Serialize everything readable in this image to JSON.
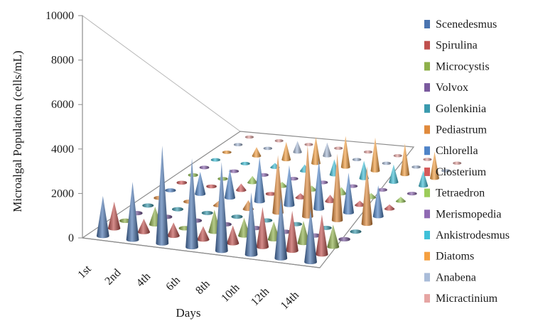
{
  "chart_data": {
    "type": "bar",
    "style": "3d-cone",
    "title": "",
    "xlabel": "Days",
    "ylabel": "Microalgal Population (cells/mL)",
    "ylim": [
      0,
      10000
    ],
    "yticks": [
      "0",
      "2000",
      "4000",
      "6000",
      "8000",
      "10000"
    ],
    "grid": false,
    "legend_position": "right",
    "categories": [
      "1st",
      "2nd",
      "4th",
      "6th",
      "8th",
      "10th",
      "12th",
      "14th"
    ],
    "series": [
      {
        "name": "Scenedesmus",
        "color": "#4a74b0",
        "values": [
          1800,
          2600,
          4400,
          4000,
          4000,
          2800,
          2800,
          2400
        ]
      },
      {
        "name": "Spirulina",
        "color": "#c0504d",
        "values": [
          1200,
          600,
          600,
          600,
          800,
          1800,
          1800,
          1800
        ]
      },
      {
        "name": "Microcystis",
        "color": "#8eb04a",
        "values": [
          100,
          800,
          100,
          1000,
          800,
          800,
          1000,
          1000
        ]
      },
      {
        "name": "Volvox",
        "color": "#7a5a9e",
        "values": [
          100,
          100,
          100,
          100,
          100,
          100,
          100,
          100
        ]
      },
      {
        "name": "Golenkinia",
        "color": "#3a9aae",
        "values": [
          100,
          100,
          100,
          100,
          100,
          100,
          100,
          100
        ]
      },
      {
        "name": "Pediastrum",
        "color": "#e08a3c",
        "values": [
          100,
          100,
          200,
          400,
          2600,
          3200,
          3000,
          2600
        ]
      },
      {
        "name": "Chlorella",
        "color": "#4f84c8",
        "values": [
          100,
          1000,
          1300,
          2000,
          1800,
          2200,
          1800,
          1400
        ]
      },
      {
        "name": "Closterium",
        "color": "#d55b5b",
        "values": [
          100,
          100,
          300,
          100,
          200,
          300,
          200,
          200
        ]
      },
      {
        "name": "Tetraedron",
        "color": "#9ccc5a",
        "values": [
          100,
          100,
          300,
          200,
          200,
          300,
          200,
          200
        ]
      },
      {
        "name": "Merismopedia",
        "color": "#8f6ab3",
        "values": [
          100,
          100,
          100,
          100,
          100,
          100,
          100,
          100
        ]
      },
      {
        "name": "Ankistrodesmus",
        "color": "#3fc0d8",
        "values": [
          100,
          100,
          200,
          300,
          700,
          800,
          800,
          700
        ]
      },
      {
        "name": "Diatoms",
        "color": "#f5a040",
        "values": [
          100,
          400,
          800,
          1200,
          1400,
          1500,
          1400,
          1200
        ]
      },
      {
        "name": "Anabena",
        "color": "#a9bcd9",
        "values": [
          100,
          100,
          500,
          600,
          100,
          100,
          100,
          100
        ]
      },
      {
        "name": "Micractinium",
        "color": "#e6a5a3",
        "values": [
          100,
          100,
          100,
          100,
          100,
          100,
          100,
          100
        ]
      }
    ]
  }
}
